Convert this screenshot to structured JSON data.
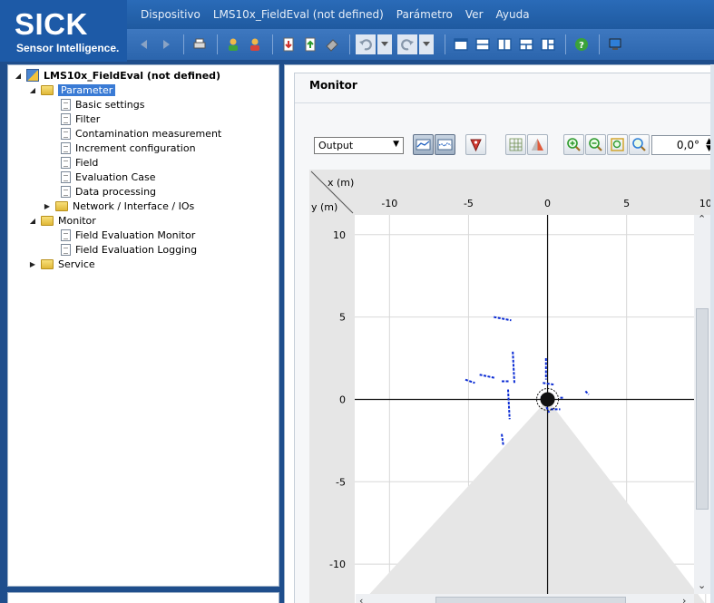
{
  "brand": {
    "logo": "SICK",
    "tagline": "Sensor Intelligence."
  },
  "menu": [
    "Dispositivo",
    "LMS10x_FieldEval (not defined)",
    "Parámetro",
    "Ver",
    "Ayuda"
  ],
  "tree": {
    "root": "LMS10x_FieldEval (not defined)",
    "parameter": "Parameter",
    "parameter_items": [
      "Basic settings",
      "Filter",
      "Contamination measurement",
      "Increment configuration",
      "Field",
      "Evaluation Case",
      "Data processing"
    ],
    "network": "Network / Interface / IOs",
    "monitor": "Monitor",
    "monitor_items": [
      "Field Evaluation Monitor",
      "Field Evaluation Logging"
    ],
    "service": "Service"
  },
  "monitor": {
    "title": "Monitor",
    "output_value": "Output",
    "angle_value": "0,0°"
  },
  "chart_data": {
    "type": "scatter",
    "xlabel": "x (m)",
    "ylabel": "y (m)",
    "x_ticks": [
      "-10",
      "-5",
      "0",
      "5",
      "10"
    ],
    "y_ticks": [
      "10",
      "5",
      "0",
      "-5",
      "-10"
    ],
    "xlim": [
      -12.2,
      10.3
    ],
    "ylim": [
      -12.8,
      11.2
    ],
    "grid": true,
    "sensor": {
      "x": 0,
      "y": 0
    },
    "field_of_view": {
      "top": [
        0,
        0
      ],
      "bottom_left": [
        -12.2,
        -12.8
      ],
      "bottom_right": [
        10.3,
        -12.8
      ],
      "color": "#e6e6e6"
    },
    "scan_color": "#0a2bd4",
    "scan_segments": [
      [
        [
          -3.4,
          5.0
        ],
        [
          -2.3,
          4.8
        ]
      ],
      [
        [
          -2.2,
          2.9
        ],
        [
          -2.1,
          1.0
        ]
      ],
      [
        [
          -2.5,
          0.6
        ],
        [
          -2.4,
          -1.2
        ]
      ],
      [
        [
          -5.2,
          1.2
        ],
        [
          -4.6,
          1.0
        ]
      ],
      [
        [
          -4.3,
          1.5
        ],
        [
          -3.3,
          1.3
        ]
      ],
      [
        [
          -2.9,
          1.1
        ],
        [
          -2.4,
          1.1
        ]
      ],
      [
        [
          -0.1,
          2.5
        ],
        [
          -0.1,
          1.2
        ]
      ],
      [
        [
          -0.3,
          1.0
        ],
        [
          0.4,
          0.9
        ]
      ],
      [
        [
          -0.4,
          0.2
        ],
        [
          0.1,
          -0.8
        ]
      ],
      [
        [
          0.2,
          -0.6
        ],
        [
          0.8,
          -0.6
        ]
      ],
      [
        [
          2.4,
          0.5
        ],
        [
          2.6,
          0.3
        ]
      ],
      [
        [
          -2.9,
          -2.1
        ],
        [
          -2.8,
          -2.8
        ]
      ],
      [
        [
          0.8,
          0.1
        ],
        [
          1.0,
          0.1
        ]
      ]
    ]
  }
}
